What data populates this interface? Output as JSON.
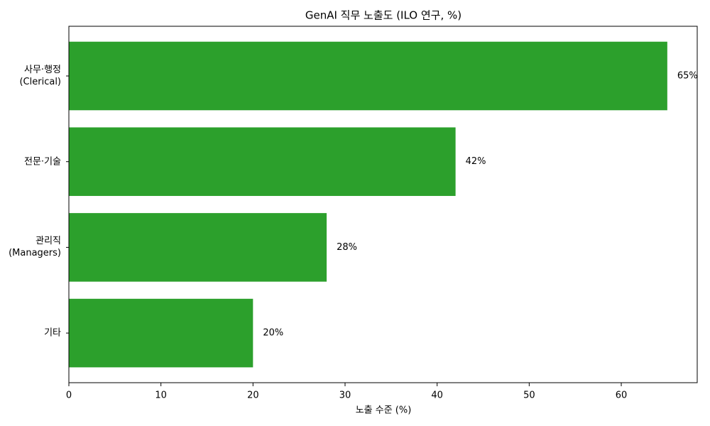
{
  "chart_data": {
    "type": "barh",
    "title": "GenAI 직무 노출도 (ILO 연구, %)",
    "xlabel": "노출 수준 (%)",
    "categories": [
      "사무·행정\n(Clerical)",
      "전문·기술",
      "관리직\n(Managers)",
      "기타"
    ],
    "values": [
      65,
      42,
      28,
      20
    ],
    "value_labels": [
      "65%",
      "42%",
      "28%",
      "20%"
    ],
    "color": "#2ca02c",
    "xlim": [
      0,
      68.25
    ],
    "xticks": [
      0,
      10,
      20,
      30,
      40,
      50,
      60
    ]
  }
}
